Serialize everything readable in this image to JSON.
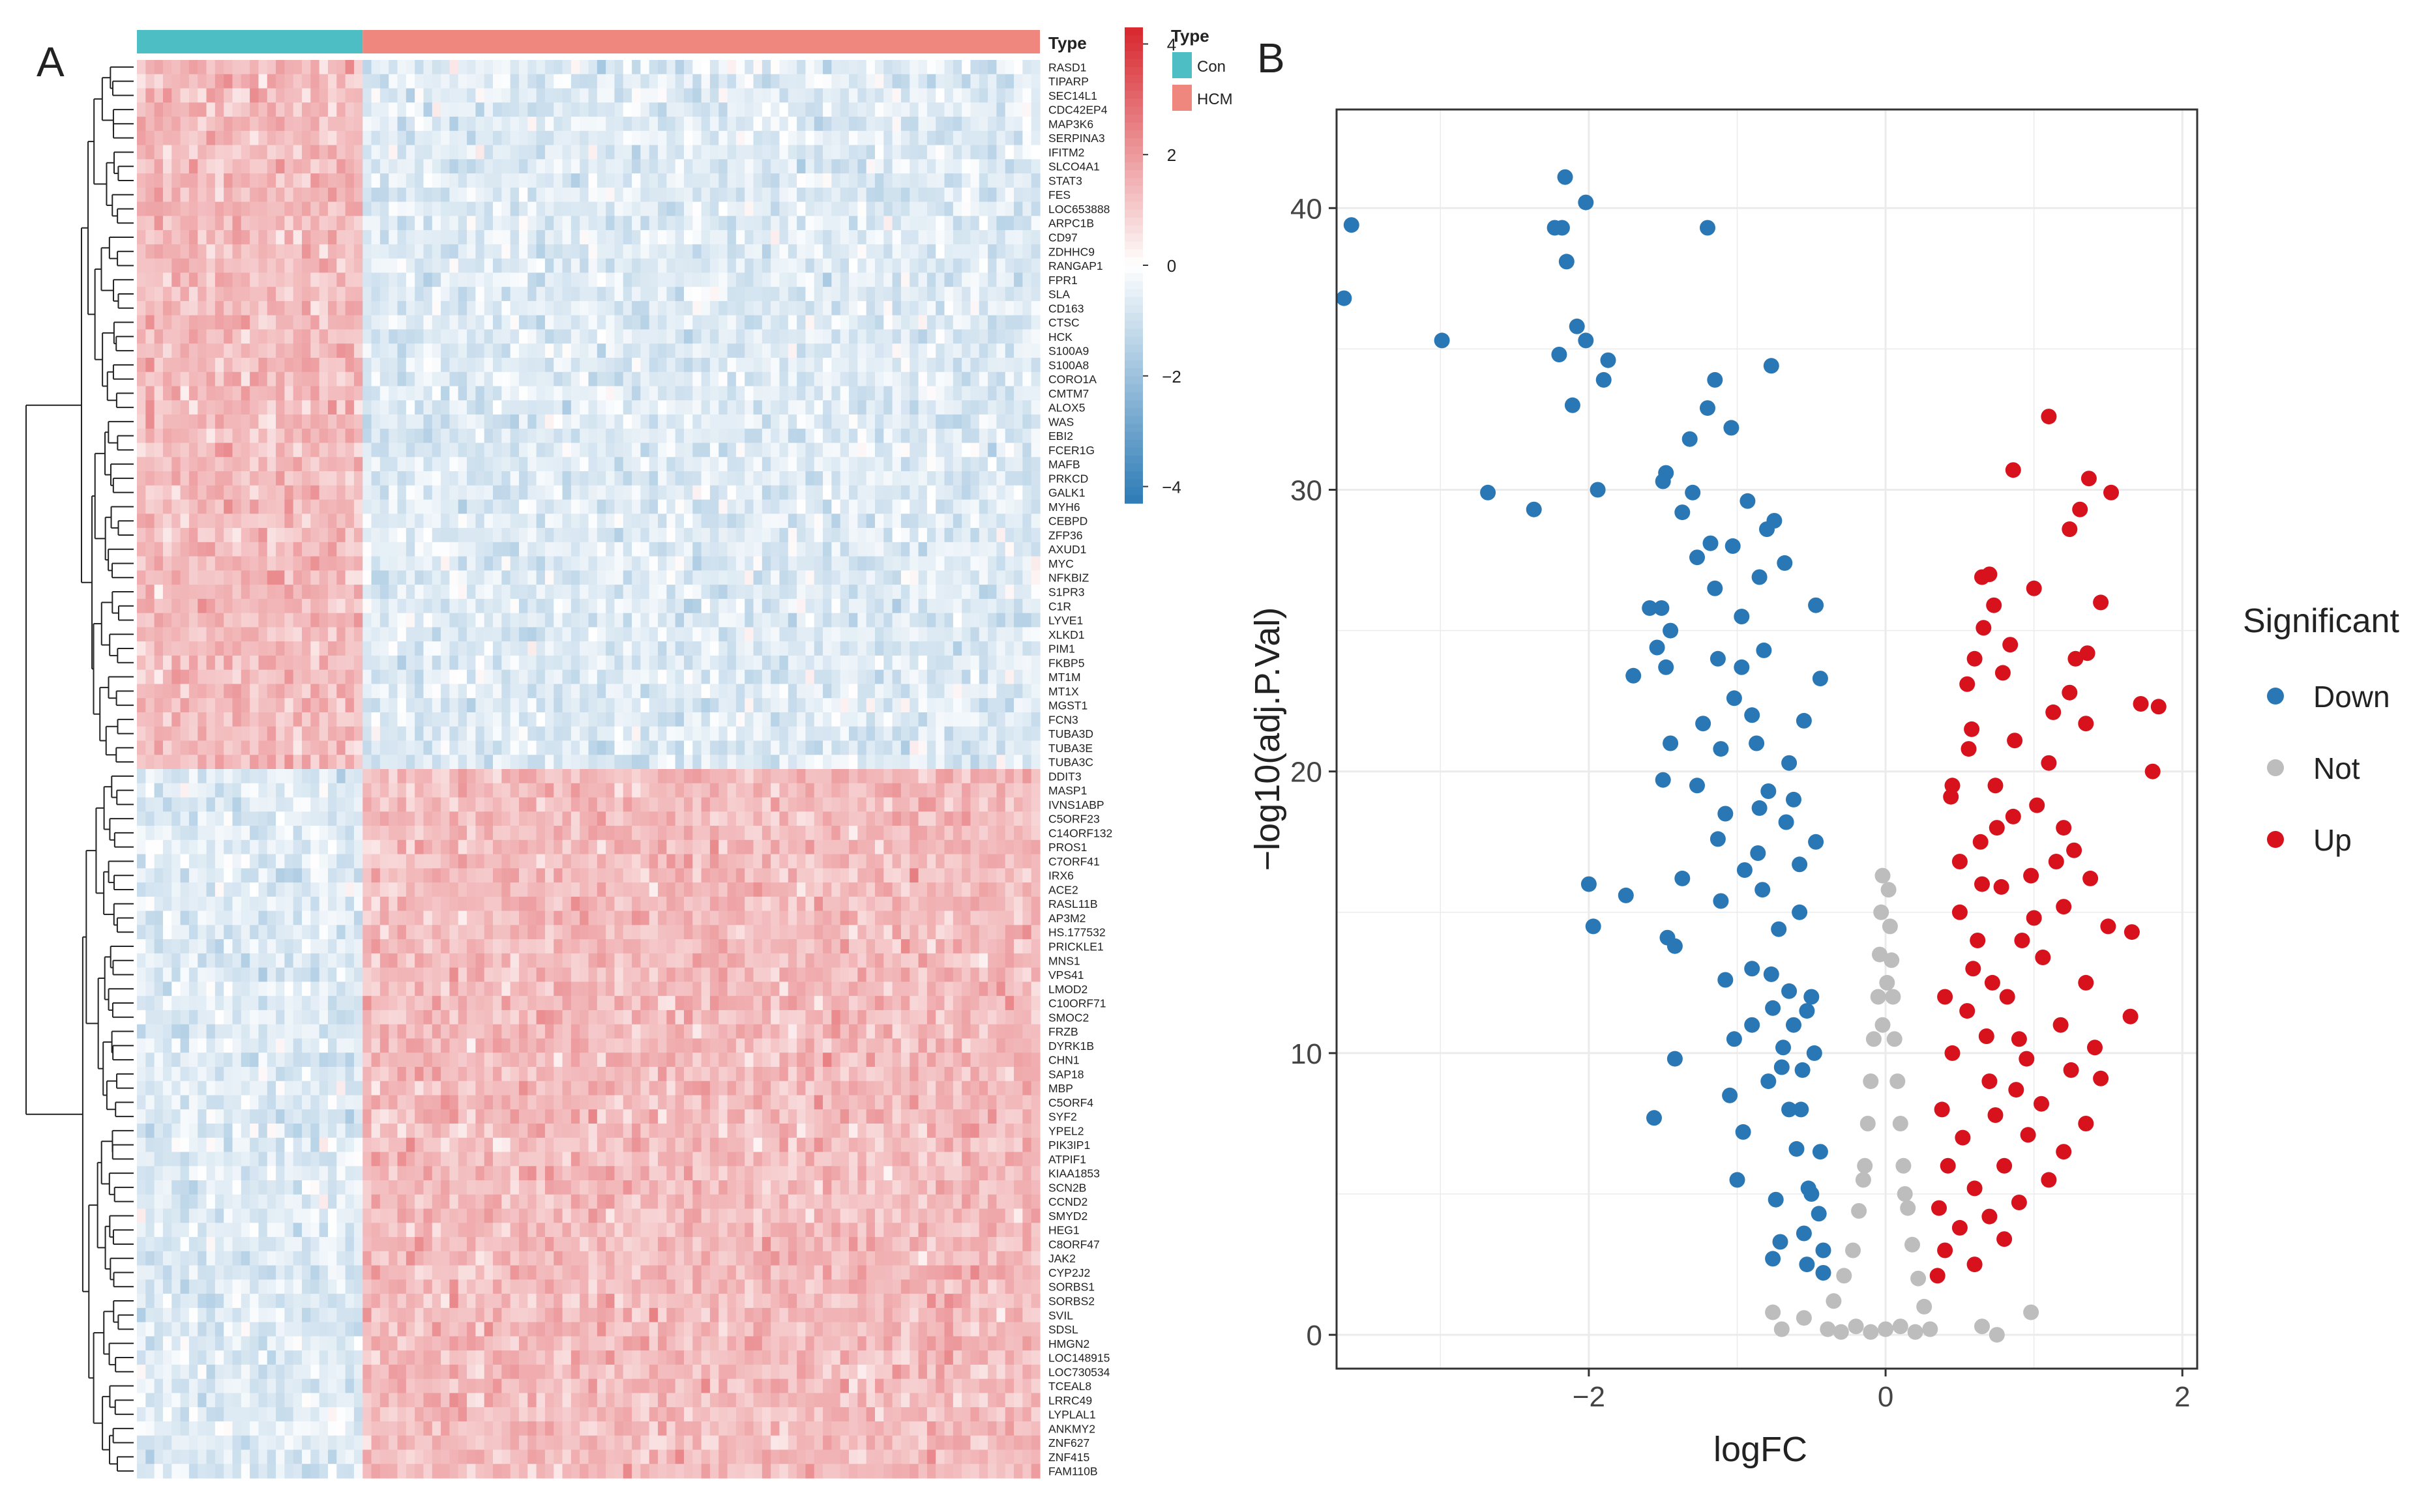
{
  "panels": {
    "a": "A",
    "b": "B"
  },
  "colors": {
    "con": "#4cbec4",
    "hcm": "#f0877f",
    "heat_high": "#d7262c",
    "heat_mid": "#ffffff",
    "heat_low": "#2c7bb6",
    "down": "#2a77b5",
    "not": "#bdbdbd",
    "up": "#d7121d",
    "grid": "#ebebeb"
  },
  "chart_data": [
    {
      "type": "heatmap",
      "title": "",
      "annotation": {
        "title": "Type",
        "groups": [
          {
            "name": "Con",
            "count": 26
          },
          {
            "name": "HCM",
            "count": 78
          }
        ]
      },
      "colorbar": {
        "ticks": [
          "4",
          "2",
          "0",
          "−2",
          "−4"
        ],
        "range": [
          -4.3,
          4.3
        ]
      },
      "upregulated_in_con": [
        "RASD1",
        "TIPARP",
        "SEC14L1",
        "CDC42EP4",
        "MAP3K6",
        "SERPINA3",
        "IFITM2",
        "SLCO4A1",
        "STAT3",
        "FES",
        "LOC653888",
        "ARPC1B",
        "CD97",
        "ZDHHC9",
        "RANGAP1",
        "FPR1",
        "SLA",
        "CD163",
        "CTSC",
        "HCK",
        "S100A9",
        "S100A8",
        "CORO1A",
        "CMTM7",
        "ALOX5",
        "WAS",
        "EBI2",
        "FCER1G",
        "MAFB",
        "PRKCD",
        "GALK1",
        "MYH6",
        "CEBPD",
        "ZFP36",
        "AXUD1",
        "MYC",
        "NFKBIZ",
        "S1PR3",
        "C1R",
        "LYVE1",
        "XLKD1",
        "PIM1",
        "FKBP5",
        "MT1M",
        "MT1X",
        "MGST1",
        "FCN3",
        "TUBA3D",
        "TUBA3E",
        "TUBA3C"
      ],
      "upregulated_in_hcm": [
        "DDIT3",
        "MASP1",
        "IVNS1ABP",
        "C5ORF23",
        "C14ORF132",
        "PROS1",
        "C7ORF41",
        "IRX6",
        "ACE2",
        "RASL11B",
        "AP3M2",
        "HS.177532",
        "PRICKLE1",
        "MNS1",
        "VPS41",
        "LMOD2",
        "C10ORF71",
        "SMOC2",
        "FRZB",
        "DYRK1B",
        "CHN1",
        "SAP18",
        "MBP",
        "C5ORF4",
        "SYF2",
        "YPEL2",
        "PIK3IP1",
        "ATPIF1",
        "KIAA1853",
        "SCN2B",
        "CCND2",
        "SMYD2",
        "HEG1",
        "C8ORF47",
        "JAK2",
        "CYP2J2",
        "SORBS1",
        "SORBS2",
        "SVIL",
        "SDSL",
        "HMGN2",
        "LOC148915",
        "LOC730534",
        "TCEAL8",
        "LRRC49",
        "LYPLAL1",
        "ANKMY2",
        "ZNF627",
        "ZNF415",
        "FAM110B"
      ]
    },
    {
      "type": "scatter",
      "title": "",
      "xlabel": "logFC",
      "ylabel": "−log10(adj.P.Val)",
      "xlim": [
        -3.7,
        2.1
      ],
      "ylim": [
        -1.2,
        43.5
      ],
      "xticks": [
        -2,
        0,
        2
      ],
      "xtick_labels": [
        "−2",
        "0",
        "2"
      ],
      "yticks": [
        0,
        10,
        20,
        30,
        40
      ],
      "ytick_labels": [
        "0",
        "10",
        "20",
        "30",
        "40"
      ],
      "grid": true,
      "legend": {
        "title": "Significant",
        "position": "right",
        "entries": [
          "Down",
          "Not",
          "Up"
        ]
      },
      "series": [
        {
          "name": "Down",
          "points": [
            [
              -3.6,
              39.4
            ],
            [
              -3.65,
              36.8
            ],
            [
              -2.99,
              35.3
            ],
            [
              -2.68,
              29.9
            ],
            [
              -2.37,
              29.3
            ],
            [
              -2.23,
              39.3
            ],
            [
              -2.16,
              41.1
            ],
            [
              -2.02,
              40.2
            ],
            [
              -2.18,
              39.3
            ],
            [
              -2.15,
              38.1
            ],
            [
              -2.08,
              35.8
            ],
            [
              -2.2,
              34.8
            ],
            [
              -2.02,
              35.3
            ],
            [
              -1.87,
              34.6
            ],
            [
              -1.9,
              33.9
            ],
            [
              -2.11,
              33.0
            ],
            [
              -1.94,
              30.0
            ],
            [
              -1.2,
              39.3
            ],
            [
              -0.77,
              34.4
            ],
            [
              -1.15,
              33.9
            ],
            [
              -1.2,
              32.9
            ],
            [
              -1.04,
              32.2
            ],
            [
              -1.32,
              31.8
            ],
            [
              -1.48,
              30.6
            ],
            [
              -1.5,
              30.3
            ],
            [
              -1.3,
              29.9
            ],
            [
              -0.93,
              29.6
            ],
            [
              -1.37,
              29.2
            ],
            [
              -0.75,
              28.9
            ],
            [
              -0.8,
              28.6
            ],
            [
              -1.18,
              28.1
            ],
            [
              -1.27,
              27.6
            ],
            [
              -1.03,
              28.0
            ],
            [
              -0.68,
              27.4
            ],
            [
              -0.85,
              26.9
            ],
            [
              -1.15,
              26.5
            ],
            [
              -0.47,
              25.9
            ],
            [
              -1.59,
              25.8
            ],
            [
              -1.51,
              25.8
            ],
            [
              -1.45,
              25.0
            ],
            [
              -0.97,
              25.5
            ],
            [
              -1.54,
              24.4
            ],
            [
              -1.13,
              24.0
            ],
            [
              -1.48,
              23.7
            ],
            [
              -1.7,
              23.4
            ],
            [
              -0.44,
              23.3
            ],
            [
              -1.02,
              22.6
            ],
            [
              -0.9,
              22.0
            ],
            [
              -1.23,
              21.7
            ],
            [
              -1.45,
              21.0
            ],
            [
              -1.11,
              20.8
            ],
            [
              -1.5,
              19.7
            ],
            [
              -1.27,
              19.5
            ],
            [
              -0.79,
              19.3
            ],
            [
              -0.85,
              18.7
            ],
            [
              -1.08,
              18.5
            ],
            [
              -0.67,
              18.2
            ],
            [
              -1.13,
              17.6
            ],
            [
              -0.86,
              17.1
            ],
            [
              -0.58,
              16.7
            ],
            [
              -1.37,
              16.2
            ],
            [
              -2.0,
              16.0
            ],
            [
              -1.11,
              15.4
            ],
            [
              -1.75,
              15.6
            ],
            [
              -1.97,
              14.5
            ],
            [
              -1.47,
              14.1
            ],
            [
              -1.42,
              13.8
            ],
            [
              -0.9,
              13.0
            ],
            [
              -1.08,
              12.6
            ],
            [
              -0.65,
              12.2
            ],
            [
              -0.76,
              11.6
            ],
            [
              -0.53,
              11.5
            ],
            [
              -0.9,
              11.0
            ],
            [
              -1.02,
              10.5
            ],
            [
              -0.69,
              10.2
            ],
            [
              -1.42,
              9.8
            ],
            [
              -0.56,
              9.4
            ],
            [
              -0.79,
              9.0
            ],
            [
              -1.05,
              8.5
            ],
            [
              -0.65,
              8.0
            ],
            [
              -1.56,
              7.7
            ],
            [
              -0.96,
              7.2
            ],
            [
              -0.6,
              6.6
            ],
            [
              -1.0,
              5.5
            ],
            [
              -0.52,
              5.2
            ],
            [
              -0.74,
              4.8
            ],
            [
              -0.45,
              4.3
            ],
            [
              -0.55,
              3.6
            ],
            [
              -0.71,
              3.3
            ],
            [
              -0.42,
              3.0
            ],
            [
              -0.76,
              2.7
            ],
            [
              -0.53,
              2.5
            ],
            [
              -0.42,
              2.2
            ],
            [
              -0.62,
              19.0
            ],
            [
              -0.47,
              17.5
            ],
            [
              -0.58,
              15.0
            ],
            [
              -0.5,
              12.0
            ],
            [
              -0.48,
              10.0
            ],
            [
              -0.57,
              8.0
            ],
            [
              -0.44,
              6.5
            ],
            [
              -0.5,
              5.0
            ],
            [
              -0.83,
              15.8
            ],
            [
              -0.72,
              14.4
            ],
            [
              -0.95,
              16.5
            ],
            [
              -0.77,
              12.8
            ],
            [
              -0.62,
              11.0
            ],
            [
              -0.7,
              9.5
            ],
            [
              -0.87,
              21.0
            ],
            [
              -0.65,
              20.3
            ],
            [
              -0.97,
              23.7
            ],
            [
              -0.55,
              21.8
            ],
            [
              -0.82,
              24.3
            ]
          ]
        },
        {
          "name": "Not",
          "points": [
            [
              -0.39,
              0.2
            ],
            [
              -0.3,
              0.1
            ],
            [
              -0.2,
              0.3
            ],
            [
              -0.1,
              0.1
            ],
            [
              0.0,
              0.2
            ],
            [
              0.1,
              0.3
            ],
            [
              0.2,
              0.1
            ],
            [
              0.3,
              0.2
            ],
            [
              -0.35,
              1.2
            ],
            [
              -0.28,
              2.1
            ],
            [
              -0.22,
              3.0
            ],
            [
              -0.18,
              4.4
            ],
            [
              -0.14,
              6.0
            ],
            [
              -0.12,
              7.5
            ],
            [
              -0.1,
              9.0
            ],
            [
              -0.08,
              10.5
            ],
            [
              -0.05,
              12.0
            ],
            [
              -0.04,
              13.5
            ],
            [
              -0.03,
              15.0
            ],
            [
              -0.02,
              16.3
            ],
            [
              0.26,
              1.0
            ],
            [
              0.22,
              2.0
            ],
            [
              0.18,
              3.2
            ],
            [
              0.15,
              4.5
            ],
            [
              0.12,
              6.0
            ],
            [
              0.1,
              7.5
            ],
            [
              0.08,
              9.0
            ],
            [
              0.06,
              10.5
            ],
            [
              0.05,
              12.0
            ],
            [
              0.04,
              13.3
            ],
            [
              0.03,
              14.5
            ],
            [
              0.02,
              15.8
            ],
            [
              -0.76,
              0.8
            ],
            [
              -0.7,
              0.2
            ],
            [
              0.75,
              0.0
            ],
            [
              0.98,
              0.8
            ],
            [
              0.65,
              0.3
            ],
            [
              -0.55,
              0.6
            ],
            [
              -0.02,
              11.0
            ],
            [
              0.01,
              12.5
            ],
            [
              -0.15,
              5.5
            ],
            [
              0.13,
              5.0
            ]
          ]
        },
        {
          "name": "Up",
          "points": [
            [
              1.1,
              32.6
            ],
            [
              0.86,
              30.7
            ],
            [
              1.37,
              30.4
            ],
            [
              1.52,
              29.9
            ],
            [
              1.31,
              29.3
            ],
            [
              1.24,
              28.6
            ],
            [
              0.7,
              27.0
            ],
            [
              0.65,
              26.9
            ],
            [
              0.73,
              25.9
            ],
            [
              1.0,
              26.5
            ],
            [
              1.45,
              26.0
            ],
            [
              0.66,
              25.1
            ],
            [
              0.84,
              24.5
            ],
            [
              1.36,
              24.2
            ],
            [
              1.28,
              24.0
            ],
            [
              0.79,
              23.5
            ],
            [
              0.55,
              23.1
            ],
            [
              1.24,
              22.8
            ],
            [
              1.72,
              22.4
            ],
            [
              1.13,
              22.1
            ],
            [
              1.35,
              21.7
            ],
            [
              1.84,
              22.3
            ],
            [
              0.87,
              21.1
            ],
            [
              0.56,
              20.8
            ],
            [
              1.1,
              20.3
            ],
            [
              1.8,
              20.0
            ],
            [
              0.74,
              19.5
            ],
            [
              0.44,
              19.1
            ],
            [
              1.02,
              18.8
            ],
            [
              0.86,
              18.4
            ],
            [
              1.2,
              18.0
            ],
            [
              0.64,
              17.5
            ],
            [
              1.27,
              17.2
            ],
            [
              0.5,
              16.8
            ],
            [
              0.98,
              16.3
            ],
            [
              1.38,
              16.2
            ],
            [
              0.78,
              15.9
            ],
            [
              1.2,
              15.2
            ],
            [
              1.5,
              14.5
            ],
            [
              1.66,
              14.3
            ],
            [
              0.92,
              14.0
            ],
            [
              1.06,
              13.4
            ],
            [
              0.59,
              13.0
            ],
            [
              1.35,
              12.5
            ],
            [
              0.82,
              12.0
            ],
            [
              1.65,
              11.3
            ],
            [
              1.18,
              11.0
            ],
            [
              0.68,
              10.6
            ],
            [
              1.41,
              10.2
            ],
            [
              0.95,
              9.8
            ],
            [
              1.25,
              9.4
            ],
            [
              1.45,
              9.1
            ],
            [
              0.88,
              8.7
            ],
            [
              1.05,
              8.2
            ],
            [
              0.74,
              7.8
            ],
            [
              1.35,
              7.5
            ],
            [
              0.96,
              7.1
            ],
            [
              1.2,
              6.5
            ],
            [
              0.8,
              6.0
            ],
            [
              1.1,
              5.5
            ],
            [
              0.6,
              5.2
            ],
            [
              0.9,
              4.7
            ],
            [
              0.7,
              4.2
            ],
            [
              0.5,
              3.8
            ],
            [
              0.8,
              3.4
            ],
            [
              0.4,
              3.0
            ],
            [
              0.6,
              2.5
            ],
            [
              0.35,
              2.1
            ],
            [
              0.45,
              19.5
            ],
            [
              0.5,
              15.0
            ],
            [
              0.4,
              12.0
            ],
            [
              0.45,
              10.0
            ],
            [
              0.38,
              8.0
            ],
            [
              0.42,
              6.0
            ],
            [
              0.36,
              4.5
            ],
            [
              0.62,
              14.0
            ],
            [
              0.55,
              11.5
            ],
            [
              0.7,
              9.0
            ],
            [
              0.65,
              16.0
            ],
            [
              0.75,
              18.0
            ],
            [
              0.58,
              21.5
            ],
            [
              0.72,
              12.5
            ],
            [
              0.9,
              10.5
            ],
            [
              0.52,
              7.0
            ],
            [
              1.0,
              14.8
            ],
            [
              0.6,
              24.0
            ],
            [
              1.15,
              16.8
            ]
          ]
        }
      ]
    }
  ]
}
